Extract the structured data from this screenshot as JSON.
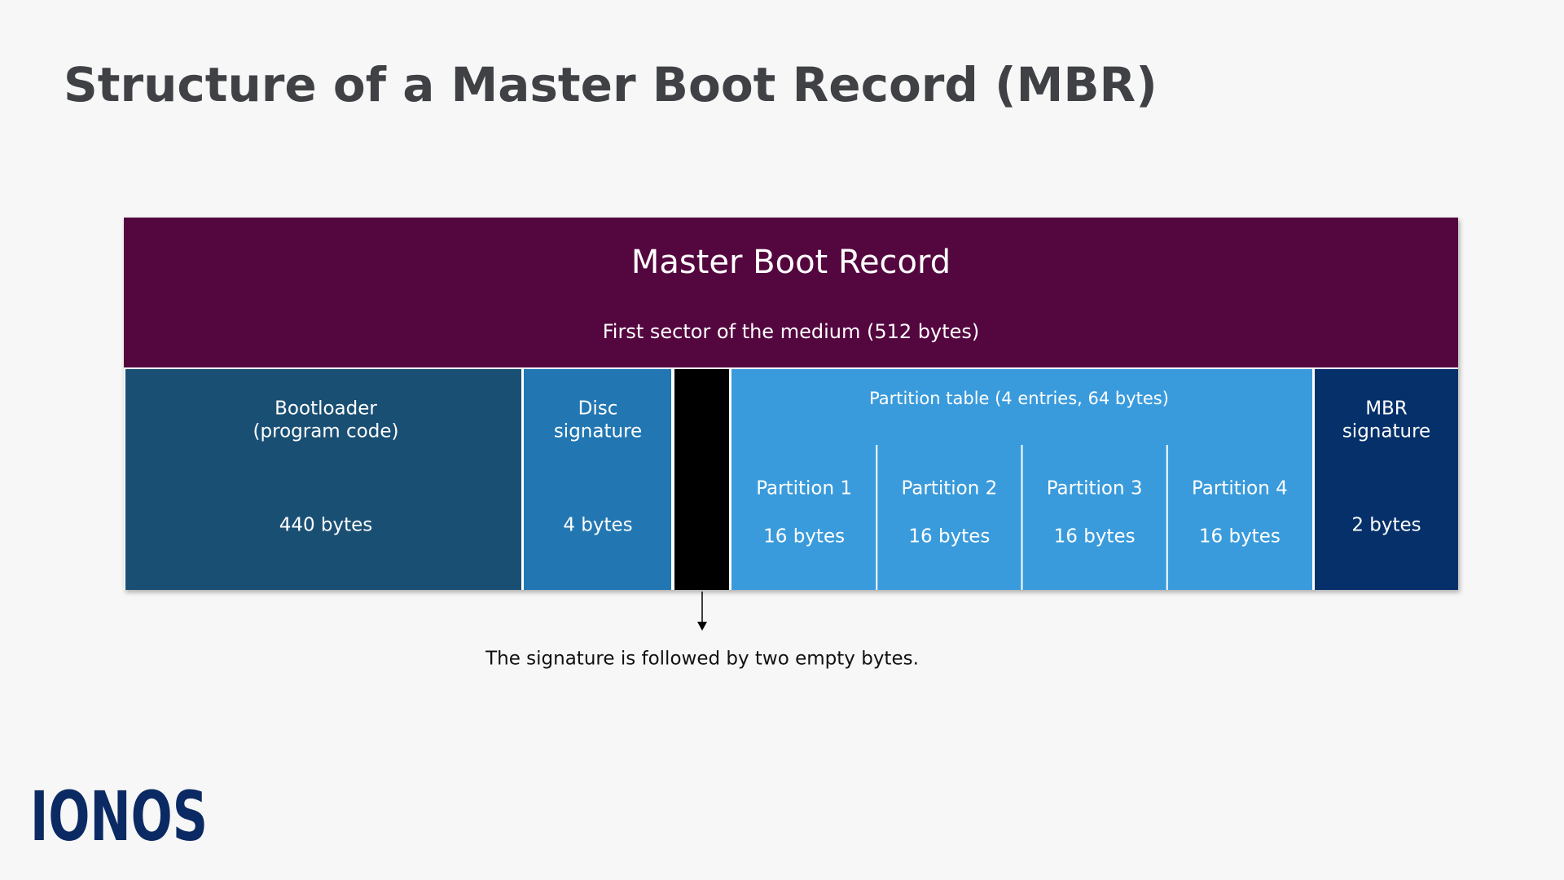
{
  "title": "Structure of a Master Boot Record (MBR)",
  "record": {
    "title": "Master Boot Record",
    "subtitle": "First sector of the medium (512 bytes)"
  },
  "fields": [
    {
      "label": [
        "Bootloader",
        "(program code)"
      ],
      "size": "440 bytes"
    },
    {
      "label": [
        "Disc",
        "signature"
      ],
      "size": "4 bytes"
    },
    {
      "label": [
        "MBR",
        "signature"
      ],
      "size": "2 bytes"
    }
  ],
  "partition_table": {
    "label": "Partition table (4 entries, 64 bytes)",
    "entries": [
      {
        "label": "Partition 1",
        "size": "16 bytes"
      },
      {
        "label": "Partition 2",
        "size": "16 bytes"
      },
      {
        "label": "Partition 3",
        "size": "16 bytes"
      },
      {
        "label": "Partition 4",
        "size": "16 bytes"
      }
    ]
  },
  "note": "The signature is followed by two empty bytes.",
  "logo": "IONOS"
}
